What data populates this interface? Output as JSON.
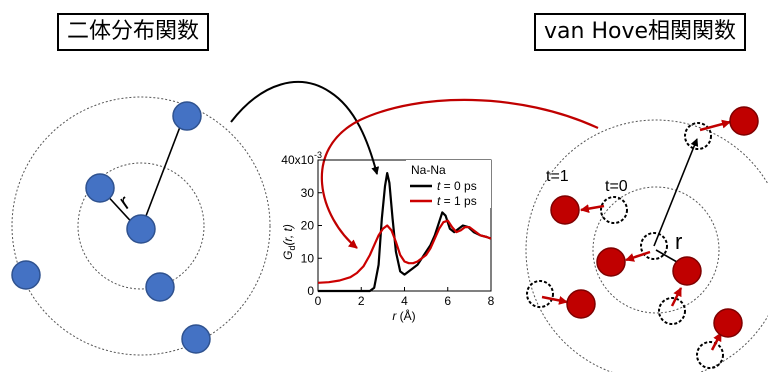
{
  "titles": {
    "left": "二体分布関数",
    "right": "van Hove相関関数"
  },
  "left_diagram": {
    "distance_label": "r",
    "particle_color": "#4472c4"
  },
  "right_diagram": {
    "label_t1": "t=1",
    "label_t0": "t=0",
    "distance_label": "r",
    "particle_color": "#c00000",
    "arrow_color": "#c00000"
  },
  "chart_data": {
    "type": "line",
    "title": "",
    "xlabel": "r (Å)",
    "ylabel": "Gd(r, t)",
    "ylabel_parts": {
      "main": "G",
      "sub": "d",
      "args": "(r, t)"
    },
    "xlim": [
      0,
      8
    ],
    "ylim": [
      0,
      40
    ],
    "x_ticks": [
      "0",
      "2",
      "4",
      "6",
      "8"
    ],
    "y_ticks": [
      "0",
      "10",
      "20",
      "30"
    ],
    "y_top_label": "40x10",
    "y_top_exp": "-3",
    "legend": {
      "title": "Na-Na",
      "placement": "top-right",
      "entries": [
        "t = 0 ps",
        "t = 1 ps"
      ]
    },
    "series": [
      {
        "name": "t = 0 ps",
        "color": "#000000",
        "x": [
          0,
          2.4,
          2.6,
          2.8,
          2.95,
          3.1,
          3.2,
          3.3,
          3.45,
          3.6,
          3.8,
          4.0,
          4.2,
          4.4,
          4.6,
          4.8,
          5.0,
          5.2,
          5.4,
          5.6,
          5.75,
          5.9,
          6.1,
          6.3,
          6.5,
          6.7,
          6.95,
          7.2,
          7.5,
          7.8,
          8.0
        ],
        "y": [
          0,
          0,
          1,
          8,
          22,
          32,
          36,
          33,
          22,
          12,
          6,
          5,
          6,
          7,
          8,
          10,
          12,
          14,
          17,
          21,
          24,
          23,
          19,
          18,
          19,
          20,
          19.5,
          18,
          17,
          16.5,
          16
        ]
      },
      {
        "name": "t = 1 ps",
        "color": "#cc0000",
        "x": [
          0,
          0.5,
          1.0,
          1.5,
          1.8,
          2.1,
          2.4,
          2.6,
          2.8,
          3.0,
          3.2,
          3.4,
          3.6,
          3.8,
          4.0,
          4.2,
          4.4,
          4.6,
          4.8,
          5.0,
          5.2,
          5.4,
          5.6,
          5.8,
          6.0,
          6.2,
          6.4,
          6.6,
          6.8,
          7.0,
          7.2,
          7.5,
          7.8,
          8.0
        ],
        "y": [
          2.5,
          2.7,
          3.2,
          4.2,
          5.5,
          7.5,
          11,
          14,
          17,
          19,
          20,
          18.5,
          15,
          11,
          9,
          8.5,
          8.5,
          9,
          10,
          11,
          13,
          16,
          19,
          21,
          21.5,
          19.5,
          18,
          18.5,
          19.5,
          19.5,
          18.5,
          17,
          16.5,
          16
        ]
      }
    ]
  }
}
